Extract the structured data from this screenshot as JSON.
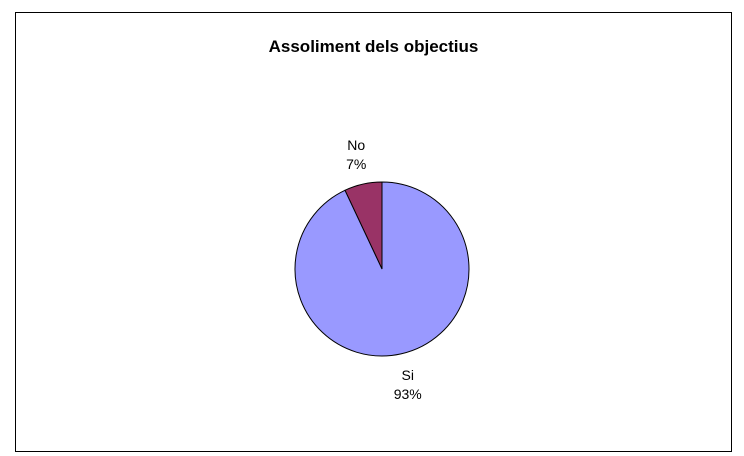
{
  "chart_data": {
    "type": "pie",
    "title": "Assoliment dels objectius",
    "slices": [
      {
        "label": "No",
        "percent_label": "7%",
        "value": 7,
        "color": "#993366"
      },
      {
        "label": "Si",
        "percent_label": "93%",
        "value": 93,
        "color": "#9999FF"
      }
    ],
    "start_angle_deg": 0,
    "direction": "counterclockwise",
    "legend": "none",
    "outline_color": "#000000"
  }
}
